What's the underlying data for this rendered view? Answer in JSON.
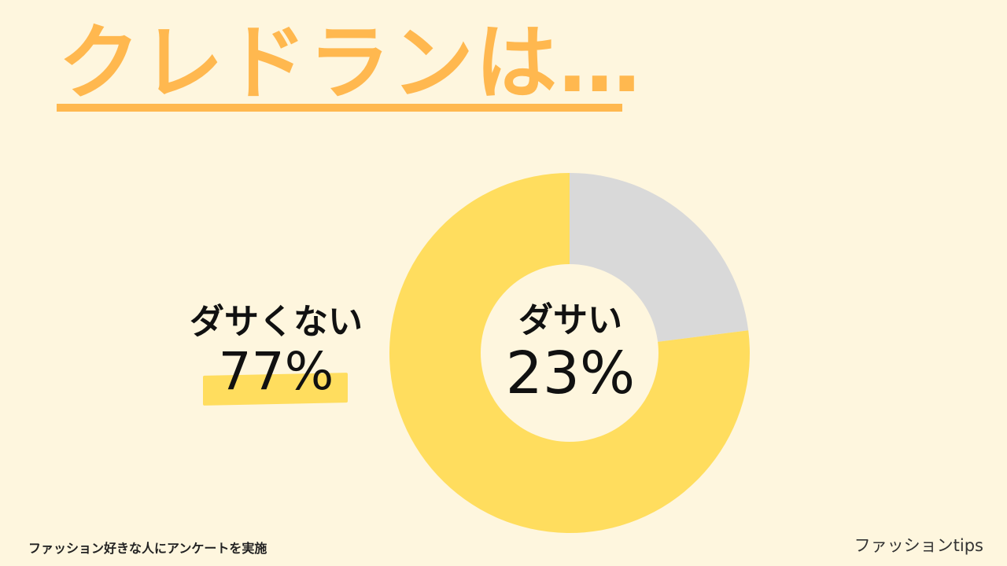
{
  "title": "クレドランは…",
  "colors": {
    "background": "#FEF6DE",
    "title": "#FFB84F",
    "majority_slice": "#FFDD5E",
    "minority_slice": "#D9D9D9",
    "highlight": "#FFDD5E"
  },
  "labels": {
    "outside_label": "ダサくない",
    "outside_value": "77%",
    "center_label": "ダサい",
    "center_value": "23%"
  },
  "footnote": "ファッション好きな人にアンケートを実施",
  "brand": "ファッションtips",
  "chart_data": {
    "type": "pie",
    "donut": true,
    "title": "",
    "slices": [
      {
        "name": "ダサい",
        "value": 23,
        "color": "#D9D9D9"
      },
      {
        "name": "ダサくない",
        "value": 77,
        "color": "#FFDD5E"
      }
    ],
    "start": "top",
    "direction": "clockwise",
    "legend": "none"
  }
}
